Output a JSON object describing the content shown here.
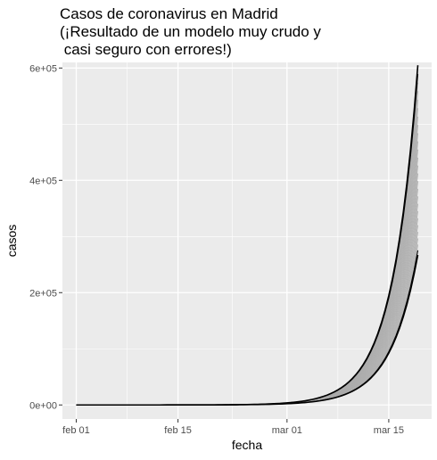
{
  "chart_data": {
    "type": "line",
    "title_lines": [
      "Casos de coronavirus en Madrid",
      "(¡Resultado de un modelo muy crudo y",
      " casi seguro con errores!)"
    ],
    "xlabel": "fecha",
    "ylabel": "casos",
    "x_ticks": [
      "feb 01",
      "feb 15",
      "mar 01",
      "mar 15"
    ],
    "y_ticks": [
      "0e+00",
      "2e+05",
      "4e+05",
      "6e+05"
    ],
    "x_start_date": "2020-02-01",
    "x_end_date": "2020-03-19",
    "ylim": [
      -25000,
      610000
    ],
    "grid": true,
    "background": "#ebebeb",
    "model": {
      "form": "exponential growth from start date",
      "series_count": 26,
      "lower_curve_end_value": 267000,
      "upper_curve_end_value": 605000,
      "highlighted_series_color": "#000000",
      "ensemble_series_color": "#aaaaaa"
    }
  }
}
